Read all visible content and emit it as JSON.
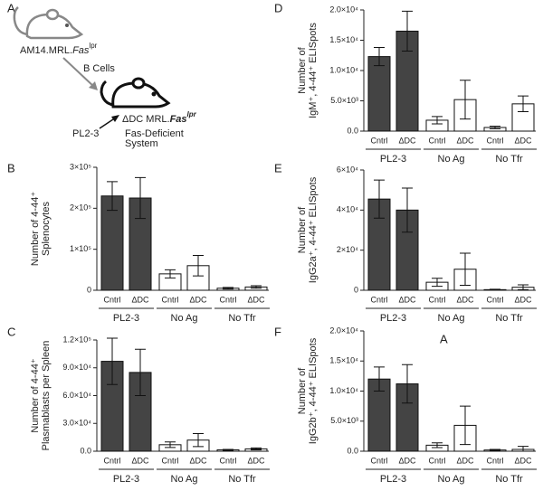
{
  "diagram": {
    "panel_label": "A",
    "donor": {
      "prefix": "AM14.MRL.",
      "gene": "Fas",
      "allele": "lpr"
    },
    "transfer": "B Cells",
    "recipient": {
      "prefix": "ΔDC MRL.",
      "gene": "Fas",
      "allele": "lpr"
    },
    "recipient_strain": "PL2-3",
    "system": [
      "Fas-Deficient",
      "System"
    ]
  },
  "chart_data": [
    {
      "type": "bar",
      "panel_label": "B",
      "ylabel": [
        "Number of 4-44⁺",
        "Splenocytes"
      ],
      "categories": [
        "Cntrl",
        "ΔDC",
        "Cntrl",
        "ΔDC",
        "Cntrl",
        "ΔDC"
      ],
      "groups": [
        "PL2-3",
        "No Ag",
        "No Tfr"
      ],
      "values": [
        230000,
        225000,
        40000,
        60000,
        5000,
        8000
      ],
      "errors": [
        35000,
        50000,
        10000,
        25000,
        2000,
        3000
      ],
      "colors": [
        "#444444",
        "#444444",
        "#ffffff",
        "#ffffff",
        "#ffffff",
        "#ffffff"
      ],
      "ylim": [
        0,
        300000
      ],
      "yticks": [
        0,
        {
          "value": 100000,
          "label": "1×10⁵"
        },
        {
          "value": 200000,
          "label": "2×10⁵"
        },
        {
          "value": 300000,
          "label": "3×10⁵"
        }
      ]
    },
    {
      "type": "bar",
      "panel_label": "C",
      "ylabel": [
        "Number of 4-44⁺",
        "Plasmablasts per Spleen"
      ],
      "categories": [
        "Cntrl",
        "ΔDC",
        "Cntrl",
        "ΔDC",
        "Cntrl",
        "ΔDC"
      ],
      "groups": [
        "PL2-3",
        "No Ag",
        "No Tfr"
      ],
      "values": [
        97000,
        85000,
        7000,
        12000,
        1500,
        2500
      ],
      "errors": [
        25000,
        25000,
        3000,
        7000,
        500,
        1000
      ],
      "colors": [
        "#444444",
        "#444444",
        "#ffffff",
        "#ffffff",
        "#ffffff",
        "#ffffff"
      ],
      "ylim": [
        0,
        120000
      ],
      "yticks": [
        {
          "value": 0,
          "label": "0.0"
        },
        {
          "value": 30000,
          "label": "3.0×10⁴"
        },
        {
          "value": 60000,
          "label": "6.0×10⁴"
        },
        {
          "value": 90000,
          "label": "9.0×10⁴"
        },
        {
          "value": 120000,
          "label": "1.2×10⁵"
        }
      ]
    },
    {
      "type": "bar",
      "panel_label": "D",
      "ylabel": [
        "Number of",
        "IgM⁺, 4-44⁺ ELISpots"
      ],
      "categories": [
        "Cntrl",
        "ΔDC",
        "Cntrl",
        "ΔDC",
        "Cntrl",
        "ΔDC"
      ],
      "groups": [
        "PL2-3",
        "No Ag",
        "No Tfr"
      ],
      "values": [
        12300,
        16500,
        1800,
        5200,
        600,
        4500
      ],
      "errors": [
        1500,
        3300,
        600,
        3200,
        200,
        1300
      ],
      "colors": [
        "#444444",
        "#444444",
        "#ffffff",
        "#ffffff",
        "#ffffff",
        "#ffffff"
      ],
      "ylim": [
        0,
        20000
      ],
      "yticks": [
        {
          "value": 0,
          "label": "0.0"
        },
        {
          "value": 5000,
          "label": "5.0×10³"
        },
        {
          "value": 10000,
          "label": "1.0×10⁴"
        },
        {
          "value": 15000,
          "label": "1.5×10⁴"
        },
        {
          "value": 20000,
          "label": "2.0×10⁴"
        }
      ]
    },
    {
      "type": "bar",
      "panel_label": "E",
      "ylabel": [
        "Number of",
        "IgG2a⁺, 4-44⁺ ELISpots"
      ],
      "categories": [
        "Cntrl",
        "ΔDC",
        "Cntrl",
        "ΔDC",
        "Cntrl",
        "ΔDC"
      ],
      "groups": [
        "PL2-3",
        "No Ag",
        "No Tfr"
      ],
      "values": [
        45500,
        40000,
        4000,
        10500,
        300,
        1500
      ],
      "errors": [
        9500,
        11000,
        2000,
        8000,
        200,
        1200
      ],
      "colors": [
        "#444444",
        "#444444",
        "#ffffff",
        "#ffffff",
        "#ffffff",
        "#ffffff"
      ],
      "ylim": [
        0,
        60000
      ],
      "yticks": [
        0,
        {
          "value": 20000,
          "label": "2×10⁴"
        },
        {
          "value": 40000,
          "label": "4×10⁴"
        },
        {
          "value": 60000,
          "label": "6×10⁴"
        }
      ]
    },
    {
      "type": "bar",
      "panel_label": "F",
      "annotation": "A",
      "ylabel": [
        "Number of",
        "IgG2b⁺, 4-44⁺ ELISpots"
      ],
      "categories": [
        "Cntrl",
        "ΔDC",
        "Cntrl",
        "ΔDC",
        "Cntrl",
        "ΔDC"
      ],
      "groups": [
        "PL2-3",
        "No Ag",
        "No Tfr"
      ],
      "values": [
        12000,
        11200,
        1000,
        4300,
        200,
        300
      ],
      "errors": [
        2000,
        3200,
        400,
        3200,
        100,
        500
      ],
      "colors": [
        "#444444",
        "#444444",
        "#ffffff",
        "#ffffff",
        "#ffffff",
        "#ffffff"
      ],
      "ylim": [
        0,
        20000
      ],
      "yticks": [
        {
          "value": 0,
          "label": "0.0"
        },
        {
          "value": 5000,
          "label": "5.0×10³"
        },
        {
          "value": 10000,
          "label": "1.0×10⁴"
        },
        {
          "value": 15000,
          "label": "1.5×10⁴"
        },
        {
          "value": 20000,
          "label": "2.0×10⁴"
        }
      ]
    }
  ]
}
